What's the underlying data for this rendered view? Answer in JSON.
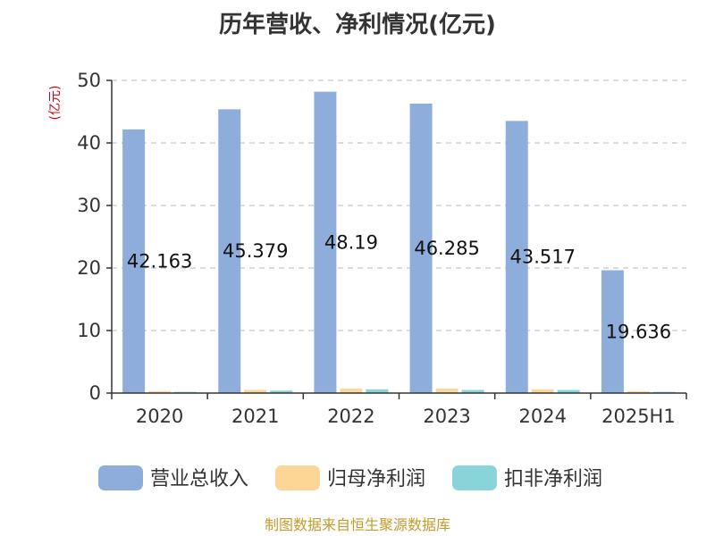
{
  "chart_data": {
    "type": "bar",
    "title": "历年营收、净利情况(亿元)",
    "ylabel": "(亿元)",
    "ylim": [
      0,
      50
    ],
    "yticks": [
      0,
      10,
      20,
      30,
      40,
      50
    ],
    "grid": true,
    "legend_position": "bottom",
    "categories": [
      "2020",
      "2021",
      "2022",
      "2023",
      "2024",
      "2025H1"
    ],
    "series": [
      {
        "name": "营业总收入",
        "color": "#8eadda",
        "values": [
          42.163,
          45.379,
          48.19,
          46.285,
          43.517,
          19.636
        ],
        "labels": [
          "42.163",
          "45.379",
          "48.19",
          "46.285",
          "43.517",
          "19.636"
        ]
      },
      {
        "name": "归母净利润",
        "color": "#fdd597",
        "values": [
          0.3,
          0.5,
          0.7,
          0.7,
          0.6,
          0.3
        ]
      },
      {
        "name": "扣非净利润",
        "color": "#89d4d8",
        "values": [
          0.2,
          0.4,
          0.6,
          0.5,
          0.5,
          0.2
        ]
      }
    ]
  },
  "colors": {
    "unit": "#d0021b",
    "source": "#c49a2c",
    "axis": "#333333",
    "grid": "#c8c8c8"
  },
  "footer": {
    "source": "制图数据来自恒生聚源数据库"
  }
}
